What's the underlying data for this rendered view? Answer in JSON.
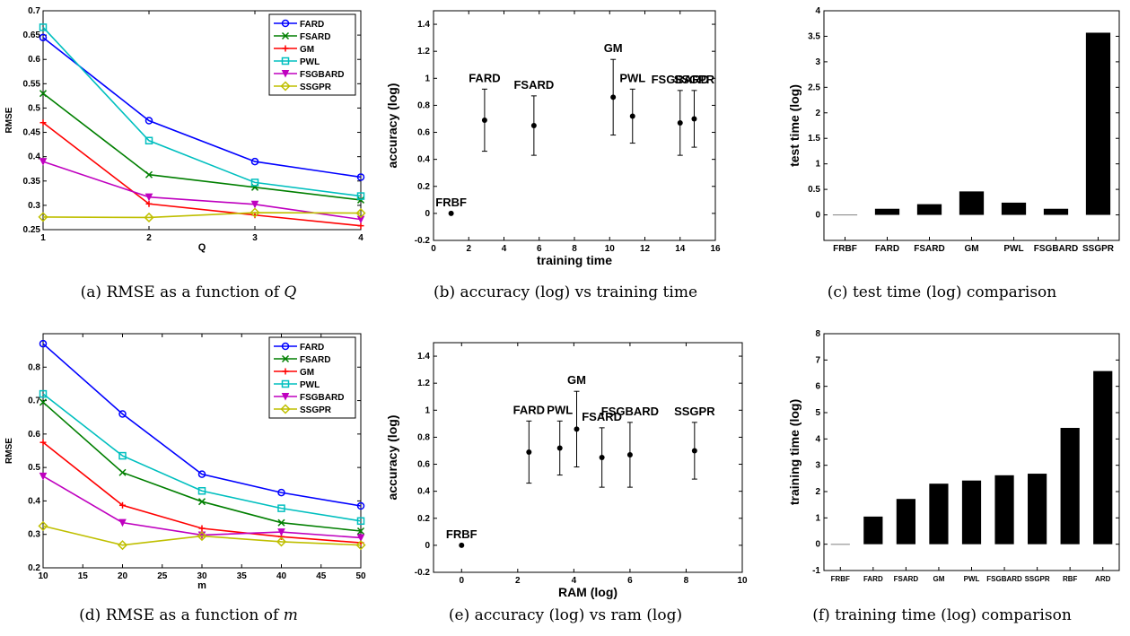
{
  "chart_data": [
    {
      "id": "a",
      "type": "line",
      "caption_prefix": "(a) RMSE as a function of ",
      "caption_var": "Q",
      "xlabel": "Q",
      "ylabel": "RMSE",
      "x": [
        1,
        2,
        3,
        4
      ],
      "xlim": [
        1,
        4
      ],
      "ylim": [
        0.25,
        0.7
      ],
      "xticks": [
        1,
        2,
        3,
        4
      ],
      "yticks": [
        0.25,
        0.3,
        0.35,
        0.4,
        0.45,
        0.5,
        0.55,
        0.6,
        0.65,
        0.7
      ],
      "legend": "top-right",
      "series": [
        {
          "name": "FARD",
          "color": "#0000ff",
          "marker": "circle",
          "values": [
            0.645,
            0.474,
            0.39,
            0.358
          ]
        },
        {
          "name": "FSARD",
          "color": "#007f00",
          "marker": "x",
          "values": [
            0.53,
            0.363,
            0.337,
            0.311
          ]
        },
        {
          "name": "GM",
          "color": "#ff0000",
          "marker": "plus",
          "values": [
            0.47,
            0.303,
            0.28,
            0.258
          ]
        },
        {
          "name": "PWL",
          "color": "#00bfbf",
          "marker": "square",
          "values": [
            0.666,
            0.433,
            0.347,
            0.319
          ]
        },
        {
          "name": "FSGBARD",
          "color": "#bf00bf",
          "marker": "triangle",
          "values": [
            0.39,
            0.317,
            0.302,
            0.271
          ]
        },
        {
          "name": "SSGPR",
          "color": "#bfbf00",
          "marker": "diamond",
          "values": [
            0.276,
            0.275,
            0.285,
            0.284
          ]
        }
      ]
    },
    {
      "id": "b",
      "type": "scatter",
      "caption_prefix": "(b) accuracy (log) vs training time",
      "caption_var": "",
      "xlabel": "training time",
      "ylabel": "accuracy (log)",
      "xlim": [
        0,
        16
      ],
      "ylim": [
        -0.2,
        1.5
      ],
      "xticks": [
        0,
        2,
        4,
        6,
        8,
        10,
        12,
        14,
        16
      ],
      "yticks": [
        -0.2,
        0,
        0.2,
        0.4,
        0.6,
        0.8,
        1,
        1.2,
        1.4
      ],
      "points": [
        {
          "label": "FRBF",
          "x": 1.0,
          "y": 0.0,
          "err": 0
        },
        {
          "label": "FARD",
          "x": 2.9,
          "y": 0.69,
          "err": 0.23
        },
        {
          "label": "FSARD",
          "x": 5.7,
          "y": 0.65,
          "err": 0.22
        },
        {
          "label": "GM",
          "x": 10.2,
          "y": 0.86,
          "err": 0.28
        },
        {
          "label": "PWL",
          "x": 11.3,
          "y": 0.72,
          "err": 0.2
        },
        {
          "label": "FSGBARD",
          "x": 14.0,
          "y": 0.67,
          "err": 0.24
        },
        {
          "label": "SSGPR",
          "x": 14.8,
          "y": 0.7,
          "err": 0.21
        }
      ]
    },
    {
      "id": "c",
      "type": "bar",
      "caption_prefix": "(c) test time (log) comparison",
      "caption_var": "",
      "xlabel": "",
      "ylabel": "test time (log)",
      "categories": [
        "FRBF",
        "FARD",
        "FSARD",
        "GM",
        "PWL",
        "FSGBARD",
        "SSGPR"
      ],
      "values": [
        0.0,
        0.12,
        0.21,
        0.46,
        0.24,
        0.12,
        3.57
      ],
      "ylim": [
        -0.5,
        4
      ],
      "yticks": [
        0,
        0.5,
        1,
        1.5,
        2,
        2.5,
        3,
        3.5,
        4
      ]
    },
    {
      "id": "d",
      "type": "line",
      "caption_prefix": "(d) RMSE as a function of ",
      "caption_var": "m",
      "xlabel": "m",
      "ylabel": "RMSE",
      "x": [
        10,
        20,
        30,
        40,
        50
      ],
      "xlim": [
        10,
        50
      ],
      "ylim": [
        0.2,
        0.9
      ],
      "xticks": [
        10,
        15,
        20,
        25,
        30,
        35,
        40,
        45,
        50
      ],
      "yticks": [
        0.2,
        0.3,
        0.4,
        0.5,
        0.6,
        0.7,
        0.8
      ],
      "legend": "top-right",
      "series": [
        {
          "name": "FARD",
          "color": "#0000ff",
          "marker": "circle",
          "values": [
            0.87,
            0.66,
            0.48,
            0.425,
            0.385
          ]
        },
        {
          "name": "FSARD",
          "color": "#007f00",
          "marker": "x",
          "values": [
            0.695,
            0.485,
            0.398,
            0.335,
            0.31
          ]
        },
        {
          "name": "GM",
          "color": "#ff0000",
          "marker": "plus",
          "values": [
            0.575,
            0.387,
            0.318,
            0.293,
            0.275
          ]
        },
        {
          "name": "PWL",
          "color": "#00bfbf",
          "marker": "square",
          "values": [
            0.72,
            0.535,
            0.43,
            0.378,
            0.34
          ]
        },
        {
          "name": "FSGBARD",
          "color": "#bf00bf",
          "marker": "triangle",
          "values": [
            0.474,
            0.335,
            0.298,
            0.307,
            0.29
          ]
        },
        {
          "name": "SSGPR",
          "color": "#bfbf00",
          "marker": "diamond",
          "values": [
            0.325,
            0.268,
            0.295,
            0.278,
            0.268
          ]
        }
      ]
    },
    {
      "id": "e",
      "type": "scatter",
      "caption_prefix": "(e) accuracy (log) vs ram (log)",
      "caption_var": "",
      "xlabel": "RAM (log)",
      "ylabel": "accuracy (log)",
      "xlim": [
        -1,
        10
      ],
      "ylim": [
        -0.2,
        1.5
      ],
      "xticks": [
        0,
        2,
        4,
        6,
        8,
        10
      ],
      "yticks": [
        -0.2,
        0,
        0.2,
        0.4,
        0.6,
        0.8,
        1,
        1.2,
        1.4
      ],
      "points": [
        {
          "label": "FRBF",
          "x": 0.0,
          "y": 0.0,
          "err": 0
        },
        {
          "label": "FARD",
          "x": 2.4,
          "y": 0.69,
          "err": 0.23
        },
        {
          "label": "PWL",
          "x": 3.5,
          "y": 0.72,
          "err": 0.2
        },
        {
          "label": "GM",
          "x": 4.1,
          "y": 0.86,
          "err": 0.28
        },
        {
          "label": "FSARD",
          "x": 5.0,
          "y": 0.65,
          "err": 0.22
        },
        {
          "label": "FSGBARD",
          "x": 6.0,
          "y": 0.67,
          "err": 0.24
        },
        {
          "label": "SSGPR",
          "x": 8.3,
          "y": 0.7,
          "err": 0.21
        }
      ]
    },
    {
      "id": "f",
      "type": "bar",
      "caption_prefix": "(f) training time (log) comparison",
      "caption_var": "",
      "xlabel": "",
      "ylabel": "training time (log)",
      "categories": [
        "FRBF",
        "FARD",
        "FSARD",
        "GM",
        "PWL",
        "FSGBARD",
        "SSGPR",
        "RBF",
        "ARD"
      ],
      "values": [
        0.0,
        1.05,
        1.72,
        2.3,
        2.42,
        2.62,
        2.68,
        4.42,
        6.58
      ],
      "ylim": [
        -1,
        8
      ],
      "yticks": [
        -1,
        0,
        1,
        2,
        3,
        4,
        5,
        6,
        7,
        8
      ]
    }
  ]
}
